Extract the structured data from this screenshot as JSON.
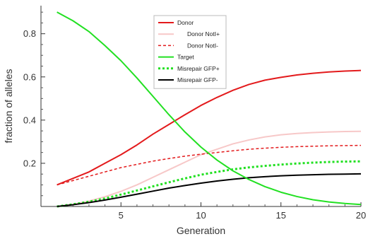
{
  "chart_data": {
    "type": "line",
    "title": "",
    "xlabel": "Generation",
    "ylabel": "fraction of alleles",
    "xlim": [
      0,
      20
    ],
    "ylim": [
      0,
      0.93
    ],
    "x_ticks": [
      5,
      10,
      15,
      20
    ],
    "y_ticks": [
      0.2,
      0.4,
      0.6,
      0.8
    ],
    "x_tick_labels": [
      "5",
      "10",
      "15",
      "20"
    ],
    "y_tick_labels": [
      "0.2",
      "0.4",
      "0.6",
      "0.8"
    ],
    "x_minor_ticks": [
      2,
      3,
      4,
      6,
      7,
      8,
      9,
      11,
      12,
      13,
      14,
      16,
      17,
      18,
      19
    ],
    "y_minor_ticks": [
      0.05,
      0.1,
      0.15,
      0.25,
      0.3,
      0.35,
      0.45,
      0.5,
      0.55,
      0.65,
      0.7,
      0.75,
      0.85,
      0.9
    ],
    "grid": false,
    "legend_position": "top-center",
    "x": [
      1,
      2,
      3,
      4,
      5,
      6,
      7,
      8,
      9,
      10,
      11,
      12,
      13,
      14,
      15,
      16,
      17,
      18,
      19,
      20
    ],
    "series": [
      {
        "name": "Donor",
        "color": "#e31a1c",
        "dash": "solid",
        "width": 2,
        "values": [
          0.1,
          0.13,
          0.16,
          0.2,
          0.24,
          0.285,
          0.335,
          0.38,
          0.425,
          0.468,
          0.505,
          0.538,
          0.565,
          0.585,
          0.598,
          0.609,
          0.617,
          0.623,
          0.627,
          0.63
        ]
      },
      {
        "name": "Donor NotI+",
        "color": "#f7c8c8",
        "dash": "solid",
        "width": 2,
        "values": [
          0.0,
          0.01,
          0.025,
          0.045,
          0.07,
          0.1,
          0.135,
          0.17,
          0.205,
          0.24,
          0.265,
          0.29,
          0.308,
          0.322,
          0.332,
          0.338,
          0.342,
          0.345,
          0.347,
          0.348
        ]
      },
      {
        "name": "Donor NotI-",
        "color": "#e31a1c",
        "dash": "4,3",
        "width": 1.5,
        "values": [
          0.1,
          0.12,
          0.14,
          0.16,
          0.18,
          0.195,
          0.21,
          0.222,
          0.233,
          0.242,
          0.25,
          0.258,
          0.265,
          0.27,
          0.274,
          0.277,
          0.279,
          0.281,
          0.282,
          0.283
        ]
      },
      {
        "name": "Target",
        "color": "#22e022",
        "dash": "solid",
        "width": 2,
        "values": [
          0.9,
          0.86,
          0.81,
          0.745,
          0.675,
          0.595,
          0.51,
          0.425,
          0.345,
          0.275,
          0.215,
          0.165,
          0.125,
          0.092,
          0.066,
          0.046,
          0.031,
          0.021,
          0.014,
          0.009
        ]
      },
      {
        "name": "Misrepair GFP+",
        "color": "#22e022",
        "dash": "3,3",
        "width": 3,
        "values": [
          0.0,
          0.01,
          0.022,
          0.037,
          0.055,
          0.074,
          0.093,
          0.112,
          0.13,
          0.147,
          0.16,
          0.172,
          0.181,
          0.188,
          0.194,
          0.199,
          0.203,
          0.206,
          0.208,
          0.209
        ]
      },
      {
        "name": "Misrepair GFP-",
        "color": "#000000",
        "dash": "solid",
        "width": 2,
        "values": [
          0.0,
          0.008,
          0.018,
          0.03,
          0.043,
          0.057,
          0.071,
          0.085,
          0.097,
          0.108,
          0.118,
          0.126,
          0.133,
          0.138,
          0.142,
          0.145,
          0.147,
          0.149,
          0.15,
          0.151
        ]
      }
    ]
  }
}
